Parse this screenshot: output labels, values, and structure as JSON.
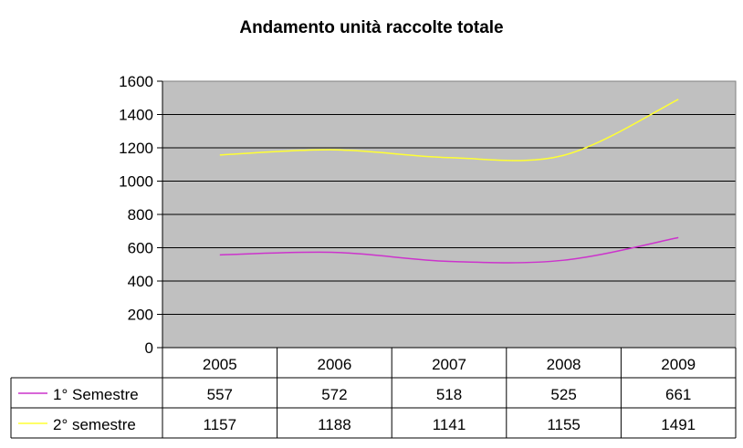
{
  "chart_data": {
    "type": "line",
    "title": "Andamento unità raccolte totale",
    "categories": [
      "2005",
      "2006",
      "2007",
      "2008",
      "2009"
    ],
    "yticks": [
      "0",
      "200",
      "400",
      "600",
      "800",
      "1000",
      "1200",
      "1400",
      "1600"
    ],
    "ylim": [
      0,
      1600
    ],
    "grid": true,
    "legend": "data-table",
    "plot_background": "#c0c0c0",
    "series": [
      {
        "name": "1° Semestre",
        "color": "#cc33cc",
        "values": [
          557,
          572,
          518,
          525,
          661
        ],
        "labels": [
          "557",
          "572",
          "518",
          "525",
          "661"
        ]
      },
      {
        "name": "2° semestre",
        "color": "#ffff33",
        "values": [
          1157,
          1188,
          1141,
          1155,
          1491
        ],
        "labels": [
          "1157",
          "1188",
          "1141",
          "1155",
          "1491"
        ]
      }
    ]
  }
}
